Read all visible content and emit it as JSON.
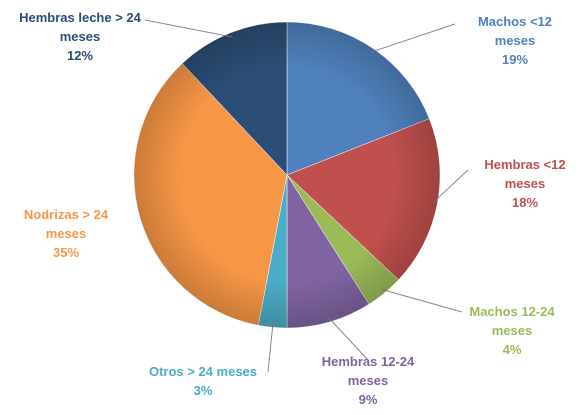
{
  "chart_data": {
    "type": "pie",
    "categories": [
      "Machos <12 meses",
      "Hembras <12 meses",
      "Machos 12-24 meses",
      "Hembras 12-24 meses",
      "Otros > 24 meses",
      "Nodrizas > 24 meses",
      "Hembras leche > 24 meses"
    ],
    "values": [
      19,
      18,
      4,
      9,
      3,
      35,
      12
    ],
    "value_labels": [
      "19%",
      "18%",
      "4%",
      "9%",
      "3%",
      "35%",
      "12%"
    ],
    "colors": [
      "#4f81bd",
      "#c0504d",
      "#9bbb59",
      "#8064a2",
      "#4bacc6",
      "#f79646",
      "#2c4d75"
    ]
  }
}
